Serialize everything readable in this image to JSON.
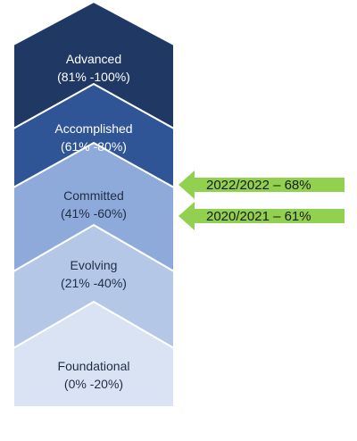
{
  "tiers": [
    {
      "name": "Advanced",
      "range": "(81% -100%)",
      "fill": "#203864",
      "text_color": "#ffffff"
    },
    {
      "name": "Accomplished",
      "range": "(61% -80%)",
      "fill": "#2f5597",
      "text_color": "#ffffff"
    },
    {
      "name": "Committed",
      "range": "(41% -60%)",
      "fill": "#8eaadb",
      "text_color": "#1f2d44"
    },
    {
      "name": "Evolving",
      "range": "(21% -40%)",
      "fill": "#b4c7e7",
      "text_color": "#1f2d44"
    },
    {
      "name": "Foundational",
      "range": "(0% -20%)",
      "fill": "#dae3f3",
      "text_color": "#1f2d44"
    }
  ],
  "markers": [
    {
      "label": "2022/2022 – 68%"
    },
    {
      "label": "2020/2021 – 61%"
    }
  ],
  "colors": {
    "marker_fill": "#92d050",
    "outline": "#ffffff"
  }
}
